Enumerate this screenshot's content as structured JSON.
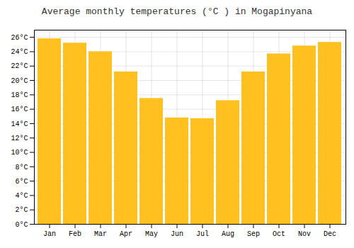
{
  "chart_data": {
    "type": "bar",
    "title": "Average monthly temperatures (°C ) in Mogapinyana",
    "categories": [
      "Jan",
      "Feb",
      "Mar",
      "Apr",
      "May",
      "Jun",
      "Jul",
      "Aug",
      "Sep",
      "Oct",
      "Nov",
      "Dec"
    ],
    "values": [
      25.8,
      25.2,
      24.0,
      21.2,
      17.5,
      14.8,
      14.7,
      17.2,
      21.2,
      23.7,
      24.8,
      25.3
    ],
    "color": "#FFC020",
    "ylim": [
      0,
      27
    ],
    "yticks": [
      {
        "value": 0,
        "label": "0°C"
      },
      {
        "value": 2,
        "label": "2°C"
      },
      {
        "value": 4,
        "label": "4°C"
      },
      {
        "value": 6,
        "label": "6°C"
      },
      {
        "value": 8,
        "label": "8°C"
      },
      {
        "value": 10,
        "label": "10°C"
      },
      {
        "value": 12,
        "label": "12°C"
      },
      {
        "value": 14,
        "label": "14°C"
      },
      {
        "value": 16,
        "label": "16°C"
      },
      {
        "value": 18,
        "label": "18°C"
      },
      {
        "value": 20,
        "label": "20°C"
      },
      {
        "value": 22,
        "label": "22°C"
      },
      {
        "value": 24,
        "label": "24°C"
      },
      {
        "value": 26,
        "label": "26°C"
      }
    ],
    "grid": true
  }
}
